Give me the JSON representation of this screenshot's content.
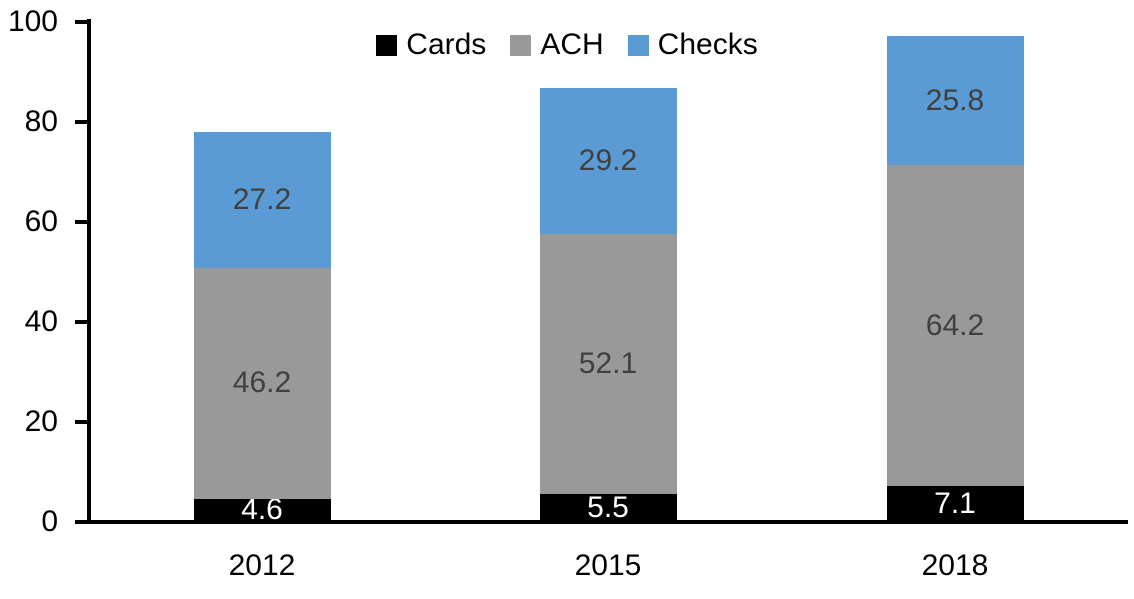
{
  "chart_data": {
    "type": "bar",
    "stacked": true,
    "title": "",
    "xlabel": "",
    "ylabel": "",
    "categories": [
      "2012",
      "2015",
      "2018"
    ],
    "series": [
      {
        "name": "Cards",
        "color": "#000000",
        "label_color": "#ffffff",
        "values": [
          4.6,
          5.5,
          7.1
        ]
      },
      {
        "name": "ACH",
        "color": "#999999",
        "label_color": "#404040",
        "values": [
          46.2,
          52.1,
          64.2
        ]
      },
      {
        "name": "Checks",
        "color": "#5b9bd5",
        "label_color": "#404040",
        "values": [
          27.2,
          29.2,
          25.8
        ]
      }
    ],
    "totals": [
      78.0,
      86.8,
      97.1
    ],
    "ylim": [
      0,
      100
    ],
    "yticks": [
      0,
      20,
      40,
      60,
      80,
      100
    ],
    "grid": false,
    "legend_position": "top-center",
    "axis_color": "#000000",
    "background_color": "#ffffff"
  }
}
